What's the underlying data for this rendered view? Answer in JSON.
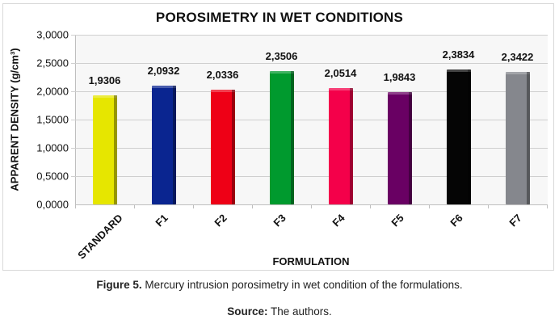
{
  "chart_data": {
    "type": "bar",
    "title": "POROSIMETRY IN WET CONDITIONS",
    "xlabel": "FORMULATION",
    "ylabel": "APPARENT DENSITY (g/cm³)",
    "ylim": [
      0,
      3
    ],
    "yticks": [
      "0,0000",
      "0,5000",
      "1,0000",
      "1,5000",
      "2,0000",
      "2,5000",
      "3,0000"
    ],
    "grid": true,
    "legend": null,
    "categories": [
      "STANDARD",
      "F1",
      "F2",
      "F3",
      "F4",
      "F5",
      "F6",
      "F7"
    ],
    "values": [
      1.9306,
      2.0932,
      2.0336,
      2.3506,
      2.0514,
      1.9843,
      2.3834,
      2.3422
    ],
    "value_labels": [
      "1,9306",
      "2,0932",
      "2,0336",
      "2,3506",
      "2,0514",
      "1,9843",
      "2,3834",
      "2,3422"
    ],
    "colors": [
      "#e6e600",
      "#0a2590",
      "#ee0016",
      "#009a2e",
      "#f4004a",
      "#690063",
      "#050505",
      "#85878d"
    ]
  },
  "caption": {
    "label": "Figure 5.",
    "text": " Mercury intrusion porosimetry in wet condition of the formulations."
  },
  "source": {
    "label": "Source:",
    "text": " The authors."
  }
}
